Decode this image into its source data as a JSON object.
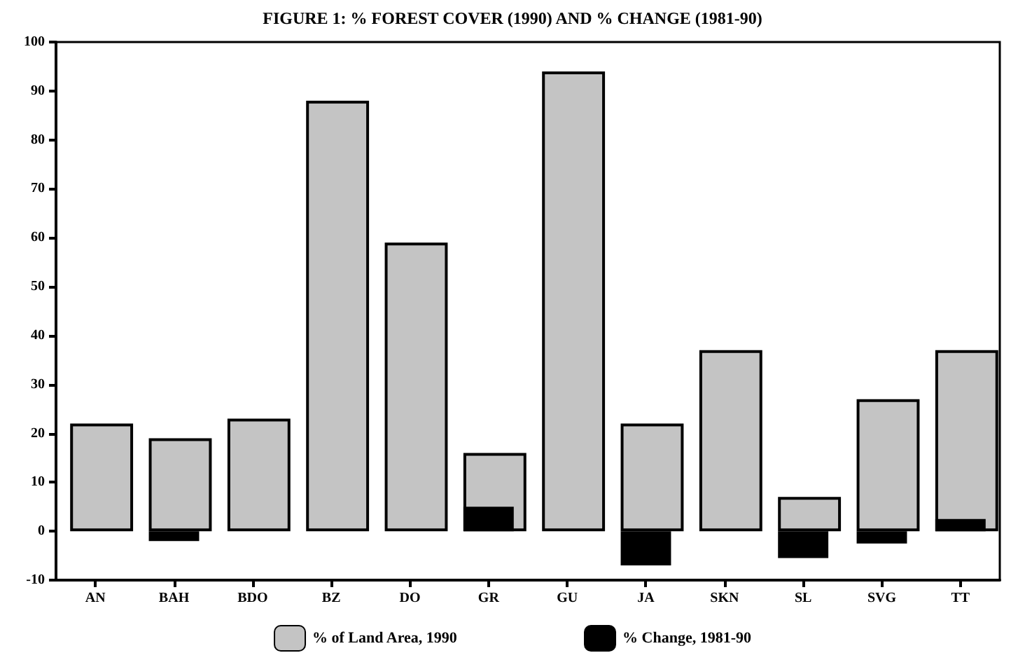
{
  "chart_data": {
    "type": "bar",
    "title": "FIGURE 1: % FOREST COVER (1990) AND % CHANGE (1981-90)",
    "categories": [
      "AN",
      "BAH",
      "BDO",
      "BZ",
      "DO",
      "GR",
      "GU",
      "JA",
      "SKN",
      "SL",
      "SVG",
      "TT"
    ],
    "series": [
      {
        "name": "% of Land Area, 1990",
        "color": "#c4c4c4",
        "values": [
          22,
          19,
          23,
          88,
          59,
          16,
          94,
          22,
          37,
          7,
          27,
          37
        ]
      },
      {
        "name": "% Change, 1981-90",
        "color": "#000000",
        "values": [
          0,
          -2,
          0,
          0,
          0,
          5,
          0,
          -7,
          0,
          -5.5,
          -2.5,
          2.5
        ]
      }
    ],
    "ylim": [
      -10,
      100
    ],
    "yticks": [
      -10,
      0,
      10,
      20,
      30,
      40,
      50,
      60,
      70,
      80,
      90,
      100
    ],
    "grid": false,
    "legend": "bottom"
  }
}
